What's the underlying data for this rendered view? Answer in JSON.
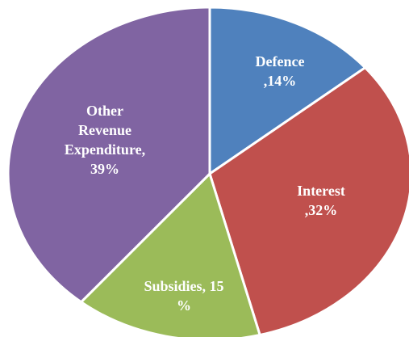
{
  "chart_data": {
    "type": "pie",
    "categories": [
      "Defence",
      "Interest",
      "Subsidies",
      "Other Revenue Expenditure"
    ],
    "values": [
      14,
      32,
      15,
      39
    ],
    "labels": [
      [
        "Defence",
        ",14%"
      ],
      [
        "Interest",
        ",32%"
      ],
      [
        "Subsidies, 15",
        "%"
      ],
      [
        "Other",
        "Revenue",
        "Expenditure,",
        "39%"
      ]
    ],
    "colors": [
      "#4f81bd",
      "#c0504d",
      "#9bbb59",
      "#8064a2"
    ]
  }
}
